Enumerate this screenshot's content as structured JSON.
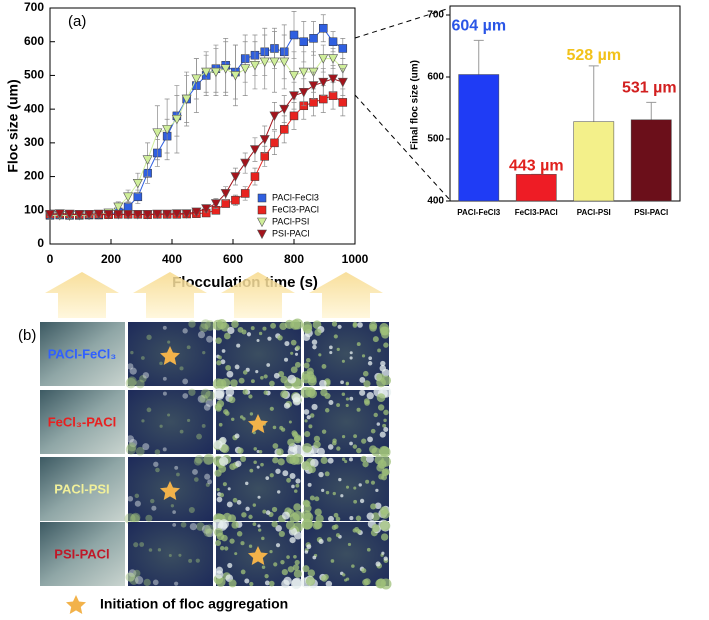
{
  "chart_data": [
    {
      "type": "line",
      "title": "(a)",
      "x_label": "Flocculation time (s)",
      "y_label": "Floc size (um)",
      "x": [
        0,
        32,
        64,
        96,
        128,
        160,
        192,
        224,
        256,
        288,
        320,
        352,
        384,
        416,
        448,
        480,
        512,
        544,
        576,
        608,
        640,
        672,
        704,
        736,
        768,
        800,
        832,
        864,
        896,
        928,
        960
      ],
      "xlim": [
        0,
        1000
      ],
      "xticks": [
        0,
        200,
        400,
        600,
        800,
        1000
      ],
      "ylim": [
        0,
        700
      ],
      "yticks": [
        0,
        100,
        200,
        300,
        400,
        500,
        600,
        700
      ],
      "series": [
        {
          "name": "PACl-FeCl3",
          "color": "#2f5fe0",
          "marker": "square",
          "values": [
            85,
            86,
            85,
            85,
            86,
            86,
            88,
            95,
            110,
            140,
            210,
            270,
            320,
            380,
            430,
            470,
            500,
            520,
            530,
            510,
            550,
            560,
            570,
            580,
            570,
            620,
            600,
            610,
            640,
            600,
            580
          ],
          "errors": [
            8,
            8,
            8,
            8,
            8,
            8,
            8,
            10,
            15,
            20,
            30,
            40,
            50,
            60,
            70,
            80,
            60,
            70,
            80,
            80,
            70,
            60,
            70,
            60,
            80,
            70,
            60,
            50,
            40,
            30,
            30
          ]
        },
        {
          "name": "FeCl3-PACl",
          "color": "#e8231f",
          "marker": "square",
          "values": [
            88,
            89,
            88,
            87,
            88,
            88,
            87,
            88,
            88,
            88,
            87,
            88,
            88,
            88,
            89,
            90,
            92,
            100,
            120,
            130,
            150,
            200,
            260,
            300,
            340,
            380,
            410,
            420,
            430,
            440,
            420
          ],
          "errors": [
            6,
            6,
            6,
            6,
            6,
            6,
            6,
            6,
            6,
            6,
            6,
            6,
            6,
            6,
            6,
            6,
            6,
            10,
            10,
            15,
            20,
            25,
            30,
            35,
            40,
            40,
            40,
            40,
            40,
            40,
            40
          ]
        },
        {
          "name": "PACl-PSI",
          "color": "#cfee9a",
          "marker": "triangle-down",
          "values": [
            85,
            85,
            84,
            85,
            86,
            88,
            92,
            110,
            140,
            180,
            250,
            330,
            340,
            370,
            430,
            490,
            510,
            510,
            520,
            500,
            520,
            530,
            540,
            540,
            540,
            500,
            510,
            510,
            550,
            550,
            520
          ],
          "errors": [
            8,
            8,
            8,
            8,
            8,
            8,
            10,
            15,
            20,
            30,
            50,
            80,
            90,
            100,
            80,
            60,
            60,
            70,
            80,
            90,
            80,
            70,
            80,
            90,
            80,
            70,
            60,
            60,
            40,
            30,
            30
          ]
        },
        {
          "name": "PSI-PACl",
          "color": "#a3141c",
          "marker": "triangle-down",
          "values": [
            88,
            90,
            89,
            88,
            88,
            89,
            88,
            88,
            88,
            88,
            88,
            89,
            89,
            90,
            90,
            95,
            105,
            120,
            150,
            200,
            240,
            280,
            310,
            380,
            400,
            440,
            450,
            470,
            480,
            490,
            480
          ],
          "errors": [
            6,
            6,
            6,
            6,
            6,
            6,
            6,
            6,
            6,
            6,
            6,
            6,
            6,
            6,
            6,
            8,
            10,
            15,
            20,
            25,
            30,
            35,
            40,
            40,
            40,
            40,
            40,
            40,
            40,
            40,
            40
          ]
        }
      ]
    },
    {
      "type": "bar",
      "y_label": "Final floc size (um)",
      "categories": [
        "PACl-FeCl3",
        "FeCl3-PACl",
        "PACl-PSI",
        "PSI-PACl"
      ],
      "values": [
        604,
        443,
        528,
        531
      ],
      "value_labels": [
        "604 µm",
        "443 µm",
        "528 µm",
        "531 µm"
      ],
      "errors": [
        55,
        0,
        90,
        28
      ],
      "colors": [
        "#1f3cf5",
        "#ee1c25",
        "#f3f08a",
        "#6b0f1a"
      ],
      "ylim": [
        400,
        700
      ],
      "yticks": [
        400,
        500,
        600,
        700
      ]
    }
  ],
  "panel_b": {
    "label": "(b)",
    "rows": [
      "PACl-FeCl₃",
      "FeCl₃-PACl",
      "PACl-PSI",
      "PSI-PACl"
    ],
    "legend": "Initiation of floc aggregation"
  }
}
